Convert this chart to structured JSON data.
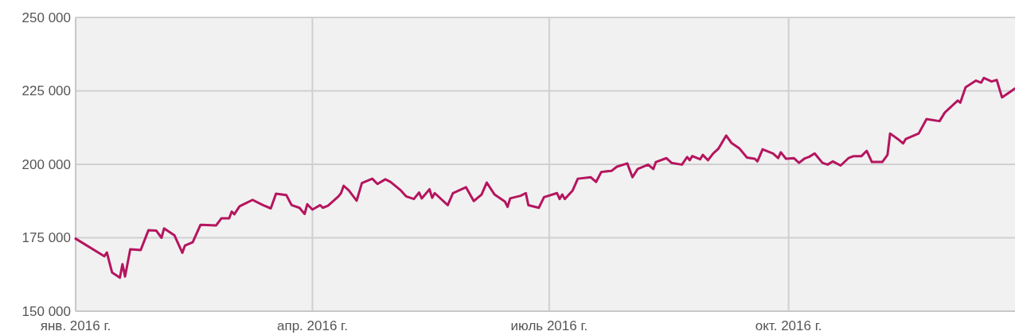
{
  "chart_data": {
    "type": "line",
    "grid": true,
    "marker": "none",
    "line_style": "solid",
    "xlim": [
      "2016-01-01",
      "2016-12-27"
    ],
    "xticks": [
      {
        "value": "2016-01-01",
        "label": "янв. 2016 г."
      },
      {
        "value": "2016-04-01",
        "label": "апр. 2016 г."
      },
      {
        "value": "2016-07-01",
        "label": "июль 2016 г."
      },
      {
        "value": "2016-10-01",
        "label": "окт. 2016 г."
      }
    ],
    "ylim": [
      150000,
      250000
    ],
    "yticks": [
      {
        "value": 150000,
        "label": "150 000"
      },
      {
        "value": 175000,
        "label": "175 000"
      },
      {
        "value": 200000,
        "label": "200 000"
      },
      {
        "value": 225000,
        "label": "225 000"
      },
      {
        "value": 250000,
        "label": "250 000"
      }
    ],
    "x": [
      "2016-01-01",
      "2016-01-12",
      "2016-01-13",
      "2016-01-15",
      "2016-01-18",
      "2016-01-19",
      "2016-01-20",
      "2016-01-22",
      "2016-01-26",
      "2016-01-29",
      "2016-02-01",
      "2016-02-03",
      "2016-02-04",
      "2016-02-08",
      "2016-02-11",
      "2016-02-12",
      "2016-02-15",
      "2016-02-18",
      "2016-02-24",
      "2016-02-26",
      "2016-02-29",
      "2016-03-01",
      "2016-03-02",
      "2016-03-04",
      "2016-03-09",
      "2016-03-13",
      "2016-03-16",
      "2016-03-18",
      "2016-03-22",
      "2016-03-24",
      "2016-03-27",
      "2016-03-29",
      "2016-03-30",
      "2016-04-01",
      "2016-04-04",
      "2016-04-05",
      "2016-04-07",
      "2016-04-11",
      "2016-04-12",
      "2016-04-13",
      "2016-04-15",
      "2016-04-18",
      "2016-04-20",
      "2016-04-24",
      "2016-04-26",
      "2016-04-29",
      "2016-05-01",
      "2016-05-05",
      "2016-05-07",
      "2016-05-10",
      "2016-05-12",
      "2016-05-13",
      "2016-05-16",
      "2016-05-17",
      "2016-05-18",
      "2016-05-23",
      "2016-05-25",
      "2016-05-30",
      "2016-06-02",
      "2016-06-05",
      "2016-06-07",
      "2016-06-10",
      "2016-06-14",
      "2016-06-15",
      "2016-06-16",
      "2016-06-20",
      "2016-06-22",
      "2016-06-23",
      "2016-06-27",
      "2016-06-29",
      "2016-07-04",
      "2016-07-05",
      "2016-07-06",
      "2016-07-07",
      "2016-07-10",
      "2016-07-12",
      "2016-07-17",
      "2016-07-19",
      "2016-07-21",
      "2016-07-25",
      "2016-07-27",
      "2016-07-31",
      "2016-08-02",
      "2016-08-04",
      "2016-08-08",
      "2016-08-10",
      "2016-08-11",
      "2016-08-15",
      "2016-08-17",
      "2016-08-21",
      "2016-08-23",
      "2016-08-24",
      "2016-08-25",
      "2016-08-28",
      "2016-08-29",
      "2016-08-31",
      "2016-09-02",
      "2016-09-04",
      "2016-09-07",
      "2016-09-09",
      "2016-09-12",
      "2016-09-15",
      "2016-09-18",
      "2016-09-19",
      "2016-09-21",
      "2016-09-25",
      "2016-09-27",
      "2016-09-28",
      "2016-09-30",
      "2016-10-03",
      "2016-10-05",
      "2016-10-07",
      "2016-10-09",
      "2016-10-11",
      "2016-10-14",
      "2016-10-16",
      "2016-10-18",
      "2016-10-21",
      "2016-10-24",
      "2016-10-26",
      "2016-10-29",
      "2016-10-31",
      "2016-11-02",
      "2016-11-06",
      "2016-11-08",
      "2016-11-09",
      "2016-11-12",
      "2016-11-14",
      "2016-11-15",
      "2016-11-20",
      "2016-11-23",
      "2016-11-28",
      "2016-11-30",
      "2016-12-05",
      "2016-12-06",
      "2016-12-08",
      "2016-12-12",
      "2016-12-14",
      "2016-12-15",
      "2016-12-18",
      "2016-12-20",
      "2016-12-22",
      "2016-12-27"
    ],
    "series": [
      {
        "color": "#b5155f",
        "values": [
          174700,
          168700,
          170000,
          163200,
          161400,
          166000,
          161800,
          171100,
          170800,
          177600,
          177400,
          175000,
          178200,
          175800,
          169900,
          172300,
          173500,
          179400,
          179200,
          181600,
          181600,
          183900,
          183000,
          185700,
          187900,
          186100,
          185000,
          190000,
          189500,
          186100,
          185200,
          183100,
          186400,
          184600,
          186100,
          185200,
          185900,
          189100,
          190200,
          192700,
          191100,
          187600,
          193600,
          195100,
          193300,
          194900,
          194000,
          191100,
          189100,
          188200,
          190400,
          188400,
          191500,
          188600,
          190200,
          186100,
          190200,
          192200,
          187500,
          189700,
          193800,
          189700,
          187300,
          185500,
          188400,
          189300,
          190200,
          186100,
          185200,
          188800,
          190200,
          188200,
          189700,
          188200,
          191100,
          195100,
          195600,
          194000,
          197400,
          197800,
          199200,
          200300,
          195600,
          198400,
          199900,
          198400,
          200800,
          202100,
          200500,
          199900,
          202500,
          201400,
          202800,
          201700,
          203200,
          201400,
          203700,
          205300,
          209800,
          207300,
          205500,
          202300,
          201900,
          201000,
          205100,
          203700,
          202100,
          204100,
          201900,
          202100,
          200500,
          201900,
          202600,
          203700,
          200500,
          199900,
          201000,
          199600,
          202100,
          202800,
          202800,
          204600,
          200800,
          200800,
          203200,
          210500,
          208600,
          207100,
          208600,
          210500,
          215400,
          214700,
          217600,
          221700,
          221000,
          226200,
          228500,
          227800,
          229400,
          228200,
          228700,
          222800,
          225800
        ]
      }
    ]
  }
}
